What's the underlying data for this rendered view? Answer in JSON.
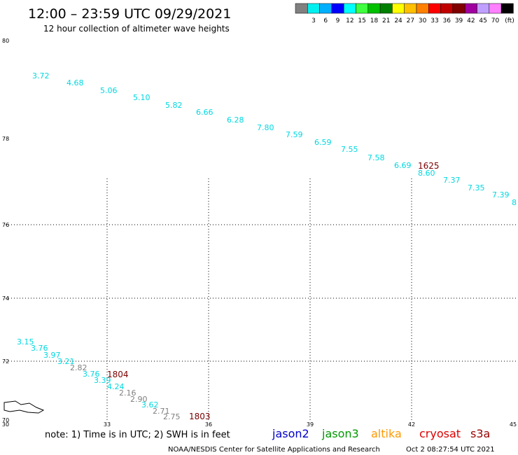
{
  "header": {
    "title": "12:00 – 23:59 UTC 09/29/2021",
    "subtitle": "12 hour collection of altimeter wave heights"
  },
  "colorbar": {
    "unit": "(ft)",
    "entries": [
      {
        "label": "",
        "color": "#808080"
      },
      {
        "label": "3",
        "color": "#00f0f0"
      },
      {
        "label": "6",
        "color": "#00b0ff"
      },
      {
        "label": "9",
        "color": "#0000ff"
      },
      {
        "label": "12",
        "color": "#00ffff"
      },
      {
        "label": "15",
        "color": "#40ff40"
      },
      {
        "label": "18",
        "color": "#00c000"
      },
      {
        "label": "21",
        "color": "#008000"
      },
      {
        "label": "24",
        "color": "#ffff00"
      },
      {
        "label": "27",
        "color": "#ffc000"
      },
      {
        "label": "30",
        "color": "#ff8000"
      },
      {
        "label": "33",
        "color": "#ff0000"
      },
      {
        "label": "36",
        "color": "#c00000"
      },
      {
        "label": "39",
        "color": "#800000"
      },
      {
        "label": "42",
        "color": "#a000a0"
      },
      {
        "label": "45",
        "color": "#c0a0ff"
      },
      {
        "label": "70",
        "color": "#ff80ff"
      },
      {
        "label": "",
        "color": "#000000"
      }
    ]
  },
  "map": {
    "lon_ticks": [
      "30",
      "33",
      "36",
      "39",
      "42",
      "45"
    ],
    "lat_ticks": [
      "70",
      "72",
      "74",
      "76",
      "78",
      "80"
    ],
    "colors": {
      "cyan": "#00d8e0",
      "gray": "#808080",
      "time": "#7a0000"
    },
    "track_a": {
      "time": "1625",
      "points": [
        {
          "v": "3.72",
          "c": "cyan"
        },
        {
          "v": "4.68",
          "c": "cyan"
        },
        {
          "v": "5.06",
          "c": "cyan"
        },
        {
          "v": "5.10",
          "c": "cyan"
        },
        {
          "v": "5.82",
          "c": "cyan"
        },
        {
          "v": "6.66",
          "c": "cyan"
        },
        {
          "v": "6.28",
          "c": "cyan"
        },
        {
          "v": "7.80",
          "c": "cyan"
        },
        {
          "v": "7.59",
          "c": "cyan"
        },
        {
          "v": "6.59",
          "c": "cyan"
        },
        {
          "v": "7.55",
          "c": "cyan"
        },
        {
          "v": "7.58",
          "c": "cyan"
        },
        {
          "v": "6.69",
          "c": "cyan"
        },
        {
          "v": "8.60",
          "c": "cyan"
        },
        {
          "v": "7.37",
          "c": "cyan"
        },
        {
          "v": "7.35",
          "c": "cyan"
        },
        {
          "v": "7.39",
          "c": "cyan"
        },
        {
          "v": "8",
          "c": "cyan"
        }
      ]
    },
    "track_b": {
      "times": [
        "1804",
        "1803"
      ],
      "points": [
        {
          "v": "3.15",
          "c": "cyan"
        },
        {
          "v": "3.76",
          "c": "cyan"
        },
        {
          "v": "3.97",
          "c": "cyan"
        },
        {
          "v": "3.21",
          "c": "cyan"
        },
        {
          "v": "2.82",
          "c": "gray"
        },
        {
          "v": "3.76",
          "c": "cyan"
        },
        {
          "v": "3.39",
          "c": "cyan"
        },
        {
          "v": "4.24",
          "c": "cyan"
        },
        {
          "v": "2.16",
          "c": "gray"
        },
        {
          "v": "2.90",
          "c": "gray"
        },
        {
          "v": "3.62",
          "c": "cyan"
        },
        {
          "v": "2.71",
          "c": "gray"
        },
        {
          "v": "2.75",
          "c": "gray"
        }
      ]
    }
  },
  "footer": {
    "note": "note: 1) Time is in UTC; 2) SWH is in feet",
    "satellites": [
      {
        "name": "jason2",
        "color": "#0000cc"
      },
      {
        "name": "jason3",
        "color": "#009900"
      },
      {
        "name": "altika",
        "color": "#ff9900"
      },
      {
        "name": "cryosat",
        "color": "#dd0000"
      },
      {
        "name": "s3a",
        "color": "#990000"
      }
    ],
    "credit": "NOAA/NESDIS Center for Satellite Applications and Research",
    "timestamp": "Oct  2 08:27:54 UTC 2021"
  }
}
